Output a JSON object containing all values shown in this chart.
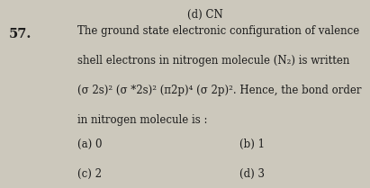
{
  "background_color": "#ccc8bc",
  "top_text": "(d) CN",
  "question_number": "57.",
  "question_line1": "The ground state electronic configuration of valence",
  "question_line2": "shell electrons in nitrogen molecule (N₂) is written",
  "question_line3": "(σ 2s)² (σ *2s)² (π2p)⁴ (σ 2p)². Hence, the bond order",
  "question_line4": "in nitrogen molecule is :",
  "opt_a": "(a) 0",
  "opt_b": "(b) 1",
  "opt_c": "(c) 2",
  "opt_d": "(d) 3",
  "text_color": "#1c1c1c",
  "font_size_main": 8.5,
  "font_size_number": 10.5,
  "font_size_options": 8.5
}
